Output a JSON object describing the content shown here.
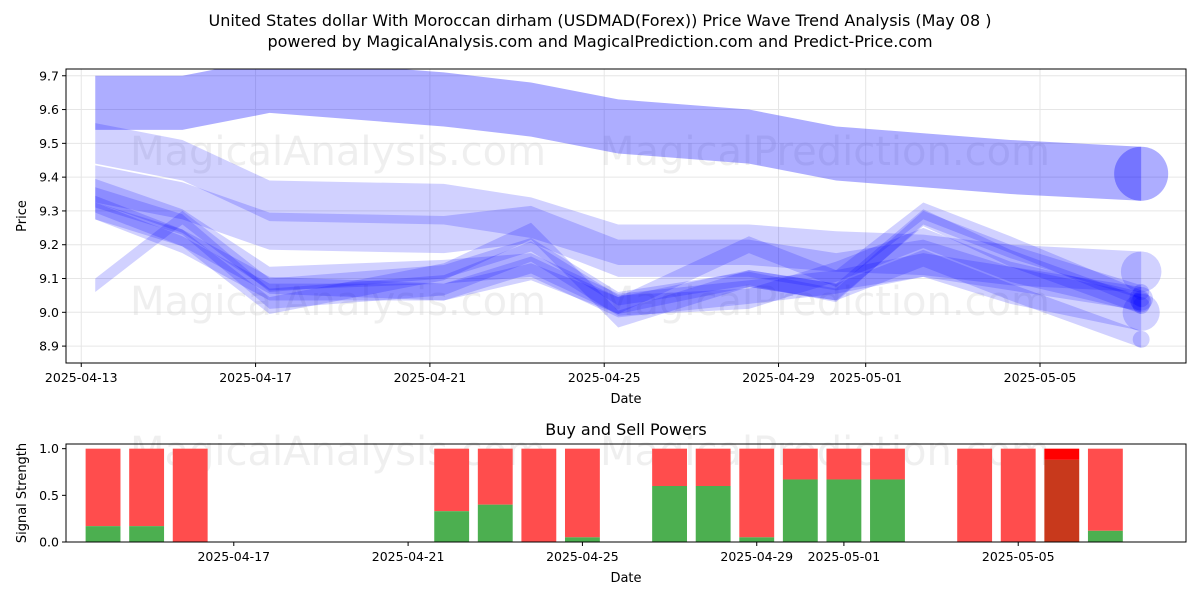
{
  "title_line1": "United States dollar With Moroccan dirham (USDMAD(Forex)) Price Wave Trend Analysis (May 08 )",
  "title_line2": "powered by MagicalAnalysis.com and MagicalPrediction.com and Predict-Price.com",
  "watermarks": [
    "MagicalAnalysis.com",
    "MagicalPrediction.com"
  ],
  "chart_data": [
    {
      "type": "area",
      "xlabel": "Date",
      "ylabel": "Price",
      "xlim": [
        "2025-04-13",
        "2025-05-08"
      ],
      "ylim": [
        8.85,
        9.72
      ],
      "yticks": [
        8.9,
        9.0,
        9.1,
        9.2,
        9.3,
        9.4,
        9.5,
        9.6,
        9.7
      ],
      "xticks": [
        "2025-04-13",
        "2025-04-17",
        "2025-04-21",
        "2025-04-25",
        "2025-04-29",
        "2025-05-01",
        "2025-05-05"
      ],
      "grid": true,
      "color": "#0000ff",
      "bands": [
        {
          "x": [
            "2025-04-13",
            "2025-04-15",
            "2025-04-17",
            "2025-04-21",
            "2025-04-23",
            "2025-04-25",
            "2025-04-28",
            "2025-04-30",
            "2025-05-02",
            "2025-05-04",
            "2025-05-07"
          ],
          "y": [
            9.62,
            9.62,
            9.67,
            9.63,
            9.6,
            9.55,
            9.52,
            9.47,
            9.45,
            9.43,
            9.41
          ],
          "width": 0.16
        },
        {
          "x": [
            "2025-04-13",
            "2025-04-15",
            "2025-04-17",
            "2025-04-21",
            "2025-04-23",
            "2025-04-25",
            "2025-04-28",
            "2025-04-30",
            "2025-05-02",
            "2025-05-04",
            "2025-05-07"
          ],
          "y": [
            9.5,
            9.45,
            9.33,
            9.32,
            9.28,
            9.2,
            9.2,
            9.18,
            9.17,
            9.14,
            9.12
          ],
          "width": 0.12
        },
        {
          "x": [
            "2025-04-13",
            "2025-04-15",
            "2025-04-17",
            "2025-04-21",
            "2025-04-23",
            "2025-04-25",
            "2025-04-28",
            "2025-04-30",
            "2025-05-02",
            "2025-05-04",
            "2025-05-07"
          ],
          "y": [
            9.38,
            9.33,
            9.24,
            9.23,
            9.26,
            9.16,
            9.16,
            9.12,
            9.16,
            9.08,
            9.0
          ],
          "width": 0.11
        },
        {
          "x": [
            "2025-04-13",
            "2025-04-15",
            "2025-04-17",
            "2025-04-21",
            "2025-04-23",
            "2025-04-25",
            "2025-04-28",
            "2025-04-30",
            "2025-05-02",
            "2025-05-04",
            "2025-05-07"
          ],
          "y": [
            9.36,
            9.27,
            9.1,
            9.12,
            9.14,
            9.02,
            9.06,
            9.09,
            9.14,
            9.1,
            9.04
          ],
          "width": 0.07
        },
        {
          "x": [
            "2025-04-13",
            "2025-04-15",
            "2025-04-17",
            "2025-04-21",
            "2025-04-23",
            "2025-04-25",
            "2025-04-28",
            "2025-04-30",
            "2025-05-02",
            "2025-05-04",
            "2025-05-07"
          ],
          "y": [
            9.34,
            9.26,
            9.04,
            9.08,
            9.18,
            9.02,
            9.04,
            9.12,
            9.22,
            9.12,
            9.03
          ],
          "width": 0.06
        },
        {
          "x": [
            "2025-04-13",
            "2025-04-15",
            "2025-04-17",
            "2025-04-21",
            "2025-04-23",
            "2025-04-25",
            "2025-04-28",
            "2025-04-30",
            "2025-05-02",
            "2025-05-04",
            "2025-05-07"
          ],
          "y": [
            9.32,
            9.22,
            9.02,
            9.12,
            9.24,
            8.98,
            9.1,
            9.06,
            9.28,
            9.16,
            9.02
          ],
          "width": 0.05
        },
        {
          "x": [
            "2025-04-13",
            "2025-04-15",
            "2025-04-17",
            "2025-04-21",
            "2025-04-23",
            "2025-04-25",
            "2025-04-28",
            "2025-04-30",
            "2025-05-02",
            "2025-05-04",
            "2025-05-07"
          ],
          "y": [
            9.3,
            9.2,
            9.06,
            9.06,
            9.12,
            9.02,
            9.2,
            9.1,
            9.3,
            9.2,
            9.04
          ],
          "width": 0.05
        },
        {
          "x": [
            "2025-04-13",
            "2025-04-15",
            "2025-04-17",
            "2025-04-21",
            "2025-04-23",
            "2025-04-25",
            "2025-04-28",
            "2025-04-30",
            "2025-05-02",
            "2025-05-04",
            "2025-05-07"
          ],
          "y": [
            9.08,
            9.28,
            9.08,
            9.12,
            9.2,
            9.04,
            9.1,
            9.05,
            9.28,
            9.18,
            9.06
          ],
          "width": 0.04
        },
        {
          "x": [
            "2025-04-13",
            "2025-04-15",
            "2025-04-17",
            "2025-04-21",
            "2025-04-23",
            "2025-04-25",
            "2025-04-28",
            "2025-04-30",
            "2025-05-02",
            "2025-05-04",
            "2025-05-07"
          ],
          "y": [
            9.3,
            9.22,
            9.08,
            9.06,
            9.14,
            9.02,
            9.1,
            9.06,
            9.16,
            9.06,
            8.92
          ],
          "width": 0.05
        }
      ]
    },
    {
      "type": "bar",
      "title": "Buy and Sell Powers",
      "xlabel": "Date",
      "ylabel": "Signal Strength",
      "ylim": [
        0,
        1.05
      ],
      "yticks": [
        0.0,
        0.5,
        1.0
      ],
      "xlim": [
        "2025-04-13",
        "2025-05-08"
      ],
      "xticks": [
        "2025-04-17",
        "2025-04-21",
        "2025-04-25",
        "2025-04-29",
        "2025-05-01",
        "2025-05-05"
      ],
      "colors": {
        "buy": "#4caf50",
        "sell": "#ff4d4d",
        "buy_dark": "#c8391c",
        "sell_bright": "#ff0000"
      },
      "bars": [
        {
          "x": "2025-04-14",
          "buy": 0.17,
          "sell": 0.83
        },
        {
          "x": "2025-04-15",
          "buy": 0.17,
          "sell": 0.83
        },
        {
          "x": "2025-04-16",
          "buy": 0.0,
          "sell": 1.0
        },
        {
          "x": "2025-04-22",
          "buy": 0.33,
          "sell": 0.67
        },
        {
          "x": "2025-04-23",
          "buy": 0.4,
          "sell": 0.6
        },
        {
          "x": "2025-04-24",
          "buy": 0.0,
          "sell": 1.0
        },
        {
          "x": "2025-04-25",
          "buy": 0.05,
          "sell": 0.95
        },
        {
          "x": "2025-04-27",
          "buy": 0.6,
          "sell": 0.4
        },
        {
          "x": "2025-04-28",
          "buy": 0.6,
          "sell": 0.4
        },
        {
          "x": "2025-04-29",
          "buy": 0.05,
          "sell": 0.95
        },
        {
          "x": "2025-04-30",
          "buy": 0.67,
          "sell": 0.33
        },
        {
          "x": "2025-05-01",
          "buy": 0.67,
          "sell": 0.33
        },
        {
          "x": "2025-05-02",
          "buy": 0.67,
          "sell": 0.33
        },
        {
          "x": "2025-05-04",
          "buy": 0.0,
          "sell": 1.0
        },
        {
          "x": "2025-05-05",
          "buy": 0.0,
          "sell": 1.0
        },
        {
          "x": "2025-05-06",
          "buy": 0.88,
          "sell": 0.12,
          "dark": true
        },
        {
          "x": "2025-05-07",
          "buy": 0.12,
          "sell": 0.88
        }
      ]
    }
  ]
}
